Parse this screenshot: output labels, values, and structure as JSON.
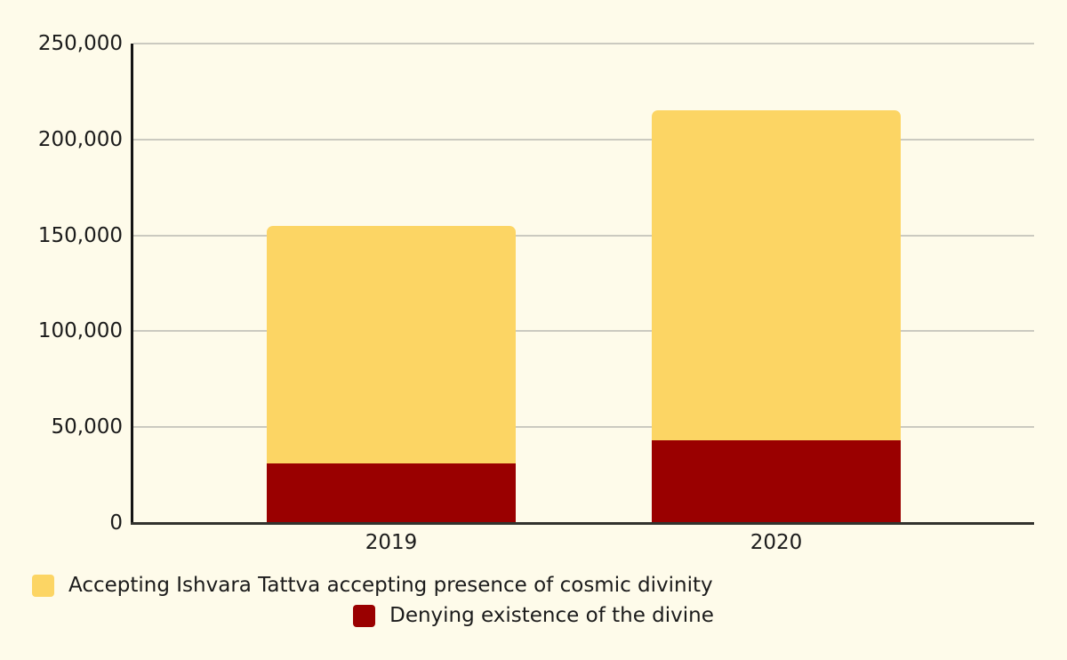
{
  "chart_data": {
    "type": "bar",
    "stacked": true,
    "title": "",
    "xlabel": "",
    "ylabel": "",
    "categories": [
      "2019",
      "2020"
    ],
    "series": [
      {
        "name": "Accepting Ishvara Tattva accepting presence of cosmic divinity",
        "color": "#FCD564",
        "stack_position": "top",
        "values": [
          124000,
          172000
        ]
      },
      {
        "name": "Denying existence of the divine",
        "color": "#9A0000",
        "stack_position": "bottom",
        "values": [
          31000,
          43000
        ]
      }
    ],
    "totals": [
      155000,
      215000
    ],
    "ylim": [
      0,
      250000
    ],
    "ytick_interval": 50000,
    "yticks": [
      "0",
      "50,000",
      "100,000",
      "150,000",
      "200,000",
      "250,000"
    ],
    "grid": true,
    "legend_position": "bottom",
    "background_color": "#FEFBEA",
    "gridline_color": "#CBCAC0",
    "axis_color": "#2B2B27",
    "text_color": "#1B1B1B"
  }
}
